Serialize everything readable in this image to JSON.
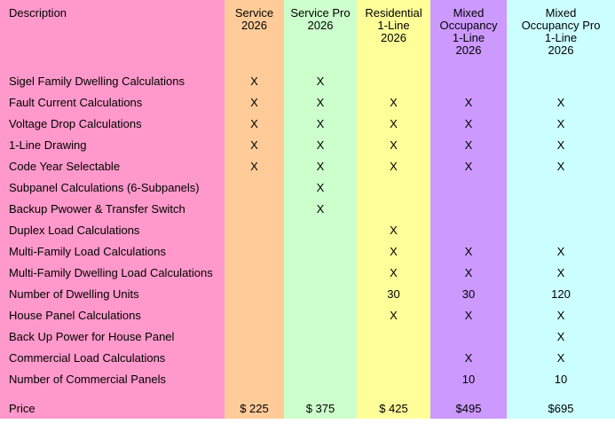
{
  "page": {
    "background_color": "#FFFFFF",
    "text_color": "#000000"
  },
  "table": {
    "description_header": "Description",
    "label_column_color": "#FF99CC",
    "columns": [
      {
        "id": "service-2026",
        "label": "Service\n2026",
        "color": "#FFCC99"
      },
      {
        "id": "service-pro-2026",
        "label": "Service Pro\n2026",
        "color": "#CCFFCC"
      },
      {
        "id": "residential-1-line-2026",
        "label": "Residential\n1-Line\n2026",
        "color": "#FFFF99"
      },
      {
        "id": "mixed-occupancy-1-line-2026",
        "label": "Mixed\nOccupancy\n1-Line\n2026",
        "color": "#CC99FF"
      },
      {
        "id": "mixed-occupancy-pro-1-line-2026",
        "label": "Mixed\nOccupancy Pro\n1-Line\n2026",
        "color": "#CCFFFF"
      }
    ],
    "rows": [
      {
        "label": "Sigel Family Dwelling Calculations",
        "values": [
          "X",
          "X",
          "",
          "",
          ""
        ]
      },
      {
        "label": "Fault Current Calculations",
        "values": [
          "X",
          "X",
          "X",
          "X",
          "X"
        ]
      },
      {
        "label": "Voltage Drop Calculations",
        "values": [
          "X",
          "X",
          "X",
          "X",
          "X"
        ]
      },
      {
        "label": "1-Line Drawing",
        "values": [
          "X",
          "X",
          "X",
          "X",
          "X"
        ]
      },
      {
        "label": "Code Year Selectable",
        "values": [
          "X",
          "X",
          "X",
          "X",
          "X"
        ]
      },
      {
        "label": "Subpanel Calculations (6-Subpanels)",
        "values": [
          "",
          "X",
          "",
          "",
          ""
        ]
      },
      {
        "label": "Backup Pwower & Transfer Switch",
        "values": [
          "",
          "X",
          "",
          "",
          ""
        ]
      },
      {
        "label": "Duplex Load Calculations",
        "values": [
          "",
          "",
          "X",
          "",
          ""
        ]
      },
      {
        "label": "Multi-Family Load Calculations",
        "values": [
          "",
          "",
          "X",
          "X",
          "X"
        ]
      },
      {
        "label": "Multi-Family Dwelling Load Calculations",
        "values": [
          "",
          "",
          "X",
          "X",
          "X"
        ]
      },
      {
        "label": "Number of Dwelling Units",
        "values": [
          "",
          "",
          "30",
          "30",
          "120"
        ]
      },
      {
        "label": "House Panel Calculations",
        "values": [
          "",
          "",
          "X",
          "X",
          "X"
        ]
      },
      {
        "label": "Back Up Power for House Panel",
        "values": [
          "",
          "",
          "",
          "",
          "X"
        ]
      },
      {
        "label": "Commercial Load Calculations",
        "values": [
          "",
          "",
          "",
          "X",
          "X"
        ]
      },
      {
        "label": "Number of Commercial Panels",
        "values": [
          "",
          "",
          "",
          "10",
          "10"
        ]
      }
    ],
    "price_row": {
      "label": "Price",
      "values": [
        "$ 225",
        "$ 375",
        "$ 425",
        "$495",
        "$695"
      ]
    }
  }
}
